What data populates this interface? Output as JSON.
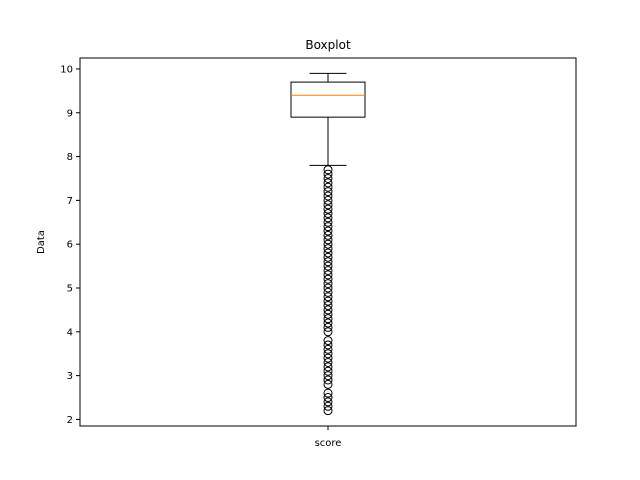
{
  "chart_data": {
    "type": "boxplot",
    "title": "Boxplot",
    "xlabel": "",
    "ylabel": "Data",
    "categories": [
      "score"
    ],
    "ylim": [
      1.85,
      10.25
    ],
    "yticks": [
      2,
      3,
      4,
      5,
      6,
      7,
      8,
      9,
      10
    ],
    "ytick_labels": [
      "2",
      "3",
      "4",
      "5",
      "6",
      "7",
      "8",
      "9",
      "10"
    ],
    "grid": false,
    "colors": {
      "box": "#000000",
      "median": "#ff7f0e",
      "flier": "#000000"
    },
    "boxes": [
      {
        "category": "score",
        "whisker_low": 7.8,
        "q1": 8.9,
        "median": 9.4,
        "q3": 9.7,
        "whisker_high": 9.9,
        "outliers": [
          7.7,
          7.6,
          7.5,
          7.4,
          7.3,
          7.2,
          7.1,
          7.0,
          6.9,
          6.8,
          6.7,
          6.6,
          6.5,
          6.4,
          6.3,
          6.2,
          6.1,
          6.0,
          5.9,
          5.8,
          5.7,
          5.6,
          5.5,
          5.4,
          5.3,
          5.2,
          5.1,
          5.0,
          4.9,
          4.8,
          4.7,
          4.6,
          4.5,
          4.4,
          4.3,
          4.2,
          4.1,
          4.0,
          3.8,
          3.7,
          3.6,
          3.5,
          3.4,
          3.3,
          3.2,
          3.1,
          3.0,
          2.9,
          2.8,
          2.6,
          2.5,
          2.4,
          2.3,
          2.2
        ]
      }
    ]
  }
}
